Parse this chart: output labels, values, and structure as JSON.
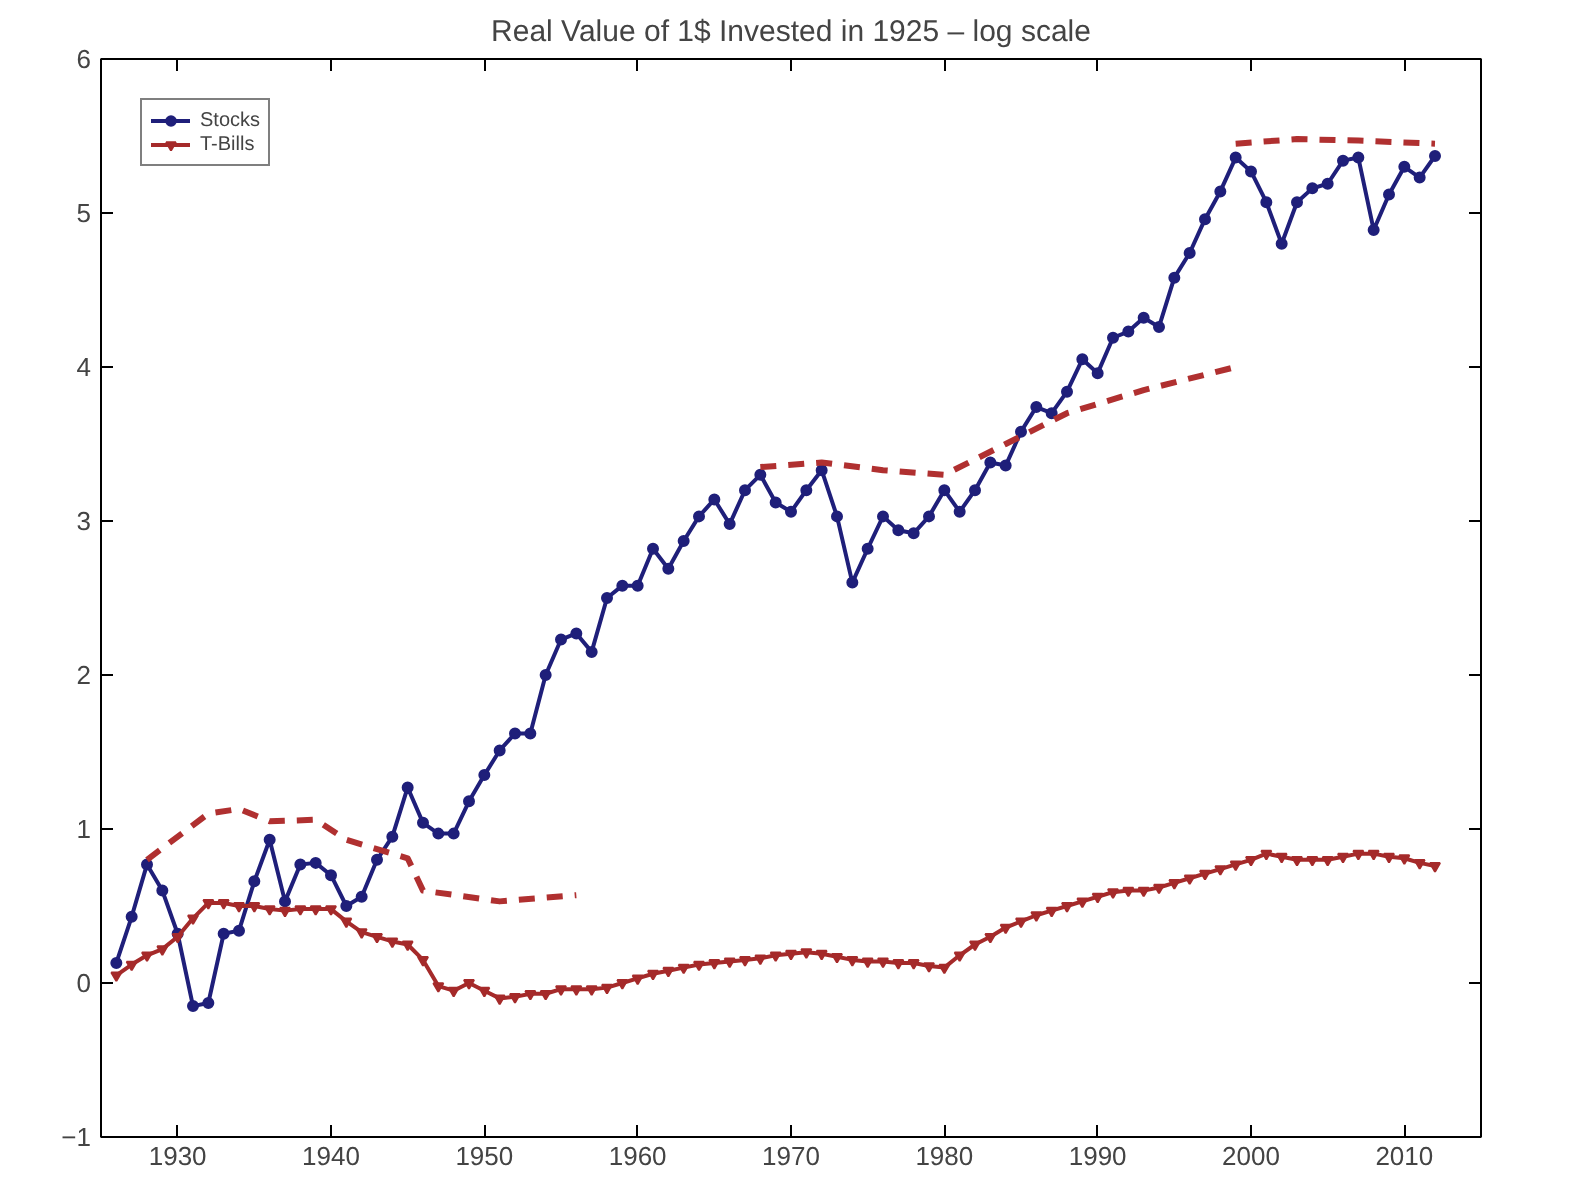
{
  "chart_data": {
    "type": "line",
    "title": "Real Value of 1$ Invested in 1925 – log scale",
    "xlim": [
      1925,
      2015
    ],
    "ylim": [
      -1,
      6
    ],
    "xticks": [
      1930,
      1940,
      1950,
      1960,
      1970,
      1980,
      1990,
      2000,
      2010
    ],
    "yticks": [
      -1,
      0,
      1,
      2,
      3,
      4,
      5,
      6
    ],
    "grid": false,
    "legend": "top left",
    "x": [
      1926,
      1927,
      1928,
      1929,
      1930,
      1931,
      1932,
      1933,
      1934,
      1935,
      1936,
      1937,
      1938,
      1939,
      1940,
      1941,
      1942,
      1943,
      1944,
      1945,
      1946,
      1947,
      1948,
      1949,
      1950,
      1951,
      1952,
      1953,
      1954,
      1955,
      1956,
      1957,
      1958,
      1959,
      1960,
      1961,
      1962,
      1963,
      1964,
      1965,
      1966,
      1967,
      1968,
      1969,
      1970,
      1971,
      1972,
      1973,
      1974,
      1975,
      1976,
      1977,
      1978,
      1979,
      1980,
      1981,
      1982,
      1983,
      1984,
      1985,
      1986,
      1987,
      1988,
      1989,
      1990,
      1991,
      1992,
      1993,
      1994,
      1995,
      1996,
      1997,
      1998,
      1999,
      2000,
      2001,
      2002,
      2003,
      2004,
      2005,
      2006,
      2007,
      2008,
      2009,
      2010,
      2011,
      2012
    ],
    "series": [
      {
        "name": "Stocks",
        "color": "#1f1f7a",
        "marker": "circle",
        "line_style": "solid",
        "values": [
          0.13,
          0.43,
          0.77,
          0.6,
          0.32,
          -0.15,
          -0.13,
          0.32,
          0.34,
          0.66,
          0.93,
          0.53,
          0.77,
          0.78,
          0.7,
          0.5,
          0.56,
          0.8,
          0.95,
          1.27,
          1.04,
          0.97,
          0.97,
          1.18,
          1.35,
          1.51,
          1.62,
          1.62,
          2.0,
          2.23,
          2.27,
          2.15,
          2.5,
          2.58,
          2.58,
          2.82,
          2.69,
          2.87,
          3.03,
          3.14,
          2.98,
          3.2,
          3.3,
          3.12,
          3.06,
          3.2,
          3.33,
          3.03,
          2.6,
          2.82,
          3.03,
          2.94,
          2.92,
          3.03,
          3.2,
          3.06,
          3.2,
          3.38,
          3.36,
          3.58,
          3.74,
          3.7,
          3.84,
          4.05,
          3.96,
          4.19,
          4.23,
          4.32,
          4.26,
          4.58,
          4.74,
          4.96,
          5.14,
          5.36,
          5.27,
          5.07,
          4.8,
          5.07,
          5.16,
          5.19,
          5.34,
          5.36,
          4.89,
          5.12,
          5.3,
          5.23,
          5.37
        ]
      },
      {
        "name": "T-Bills",
        "color": "#a52a2a",
        "marker": "triangle_down",
        "line_style": "solid",
        "values": [
          0.05,
          0.12,
          0.18,
          0.22,
          0.3,
          0.42,
          0.52,
          0.52,
          0.5,
          0.5,
          0.48,
          0.47,
          0.48,
          0.48,
          0.48,
          0.4,
          0.33,
          0.3,
          0.27,
          0.25,
          0.15,
          -0.02,
          -0.05,
          0.0,
          -0.05,
          -0.1,
          -0.09,
          -0.07,
          -0.07,
          -0.04,
          -0.04,
          -0.04,
          -0.03,
          0.0,
          0.03,
          0.06,
          0.08,
          0.1,
          0.12,
          0.13,
          0.14,
          0.15,
          0.16,
          0.18,
          0.19,
          0.2,
          0.19,
          0.17,
          0.15,
          0.14,
          0.14,
          0.13,
          0.13,
          0.11,
          0.1,
          0.18,
          0.25,
          0.3,
          0.36,
          0.4,
          0.44,
          0.47,
          0.5,
          0.53,
          0.56,
          0.59,
          0.6,
          0.6,
          0.62,
          0.65,
          0.68,
          0.71,
          0.74,
          0.77,
          0.8,
          0.84,
          0.82,
          0.8,
          0.8,
          0.8,
          0.82,
          0.84,
          0.84,
          0.82,
          0.81,
          0.78,
          0.76
        ]
      },
      {
        "color": "#b03030",
        "marker": "none",
        "line_style": "dashed",
        "x": [
          1928,
          1932,
          1934,
          1936,
          1939,
          1941,
          1945,
          1946,
          1951,
          1956
        ],
        "values": [
          0.8,
          1.1,
          1.13,
          1.05,
          1.06,
          0.93,
          0.81,
          0.6,
          0.53,
          0.57
        ]
      },
      {
        "color": "#b03030",
        "marker": "none",
        "line_style": "dashed",
        "x": [
          1968,
          1972,
          1976,
          1980,
          1984,
          1988,
          1993,
          1999
        ],
        "values": [
          3.35,
          3.38,
          3.33,
          3.3,
          3.5,
          3.7,
          3.85,
          4.0
        ]
      },
      {
        "color": "#b03030",
        "marker": "none",
        "line_style": "dashed",
        "x": [
          1999,
          2003,
          2007,
          2012
        ],
        "values": [
          5.45,
          5.48,
          5.47,
          5.45
        ]
      }
    ]
  }
}
